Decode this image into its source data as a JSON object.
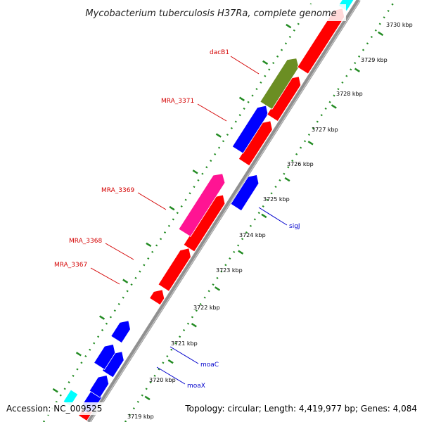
{
  "title": "Mycobacterium tuberculosis H37Ra, complete genome",
  "footer": {
    "accession": "Accession: NC_009525",
    "summary": "Topology: circular; Length: 4,419,977 bp; Genes: 4,084"
  },
  "colors": {
    "backbone": "#909090",
    "tick": "#228b22",
    "red_gene": "#ff0000",
    "blue_gene": "#0000ff",
    "olive_gene": "#6b8e23",
    "magenta_gene": "#ff1493",
    "cyan_gene": "#00ffff",
    "label_red": "#d40000",
    "label_blue": "#0000cc"
  },
  "ticks": [
    {
      "label": "3719 kbp"
    },
    {
      "label": "3720 kbp"
    },
    {
      "label": "3721 kbp"
    },
    {
      "label": "3722 kbp"
    },
    {
      "label": "3723 kbp"
    },
    {
      "label": "3724 kbp"
    },
    {
      "label": "3725 kbp"
    },
    {
      "label": "3726 kbp"
    },
    {
      "label": "3727 kbp"
    },
    {
      "label": "3728 kbp"
    },
    {
      "label": "3729 kbp"
    },
    {
      "label": "3730 kbp"
    }
  ],
  "gene_labels": {
    "dacB1": "dacB1",
    "mra3371": "MRA_3371",
    "mra3369": "MRA_3369",
    "mra3368": "MRA_3368",
    "mra3367": "MRA_3367",
    "sigJ": "sigJ",
    "moaC": "moaC",
    "moaX": "moaX"
  }
}
